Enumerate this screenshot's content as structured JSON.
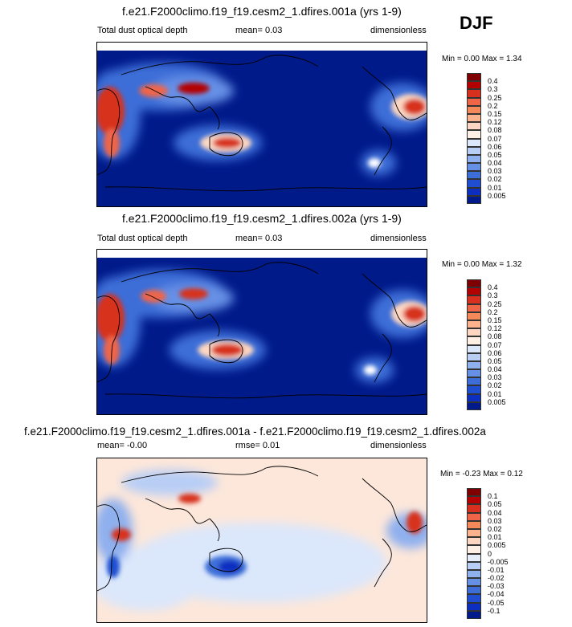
{
  "season": "DJF",
  "panels": [
    {
      "title": "f.e21.F2000climo.f19_f19.cesm2_1.dfires.001a (yrs 1-9)",
      "left_label": "Total dust optical depth",
      "mean_label": "mean=  0.03",
      "units": "dimensionless",
      "minmax": "Min =   0.00 Max =  1.34",
      "colorbar": {
        "labels": [
          "0.4",
          "0.3",
          "0.25",
          "0.2",
          "0.15",
          "0.12",
          "0.08",
          "0.07",
          "0.06",
          "0.05",
          "0.04",
          "0.03",
          "0.02",
          "0.01",
          "0.005"
        ],
        "colors": [
          "#7f0000",
          "#b30000",
          "#d7301f",
          "#ef6548",
          "#f4895a",
          "#fbb38d",
          "#fdd7c2",
          "#fef0e5",
          "#dbe7fb",
          "#b8cef5",
          "#8fb0ee",
          "#6690e6",
          "#3d6ed8",
          "#1f4fd0",
          "#0c2fc0",
          "#001a8a"
        ]
      }
    },
    {
      "title": "f.e21.F2000climo.f19_f19.cesm2_1.dfires.002a (yrs 1-9)",
      "left_label": "Total dust optical depth",
      "mean_label": "mean=  0.03",
      "units": "dimensionless",
      "minmax": "Min =   0.00 Max =  1.32",
      "colorbar": {
        "labels": [
          "0.4",
          "0.3",
          "0.25",
          "0.2",
          "0.15",
          "0.12",
          "0.08",
          "0.07",
          "0.06",
          "0.05",
          "0.04",
          "0.03",
          "0.02",
          "0.01",
          "0.005"
        ],
        "colors": [
          "#7f0000",
          "#b30000",
          "#d7301f",
          "#ef6548",
          "#f4895a",
          "#fbb38d",
          "#fdd7c2",
          "#fef0e5",
          "#dbe7fb",
          "#b8cef5",
          "#8fb0ee",
          "#6690e6",
          "#3d6ed8",
          "#1f4fd0",
          "#0c2fc0",
          "#001a8a"
        ]
      }
    },
    {
      "title": "f.e21.F2000climo.f19_f19.cesm2_1.dfires.001a - f.e21.F2000climo.f19_f19.cesm2_1.dfires.002a",
      "left_label": "mean= -0.00",
      "mean_label": "rmse=  0.01",
      "units": "dimensionless",
      "minmax": "Min = -0.23 Max =  0.12",
      "colorbar": {
        "labels": [
          "0.1",
          "0.05",
          "0.04",
          "0.03",
          "0.02",
          "0.01",
          "0.005",
          "0",
          "-0.005",
          "-0.01",
          "-0.02",
          "-0.03",
          "-0.04",
          "-0.05",
          "-0.1"
        ],
        "colors": [
          "#7f0000",
          "#b30000",
          "#d7301f",
          "#ef6548",
          "#f4895a",
          "#fbb38d",
          "#fdd7c2",
          "#fef0e5",
          "#e6eefc",
          "#b8cef5",
          "#8fb0ee",
          "#6690e6",
          "#3d6ed8",
          "#1f4fd0",
          "#0c2fc0",
          "#001a8a"
        ]
      }
    }
  ]
}
